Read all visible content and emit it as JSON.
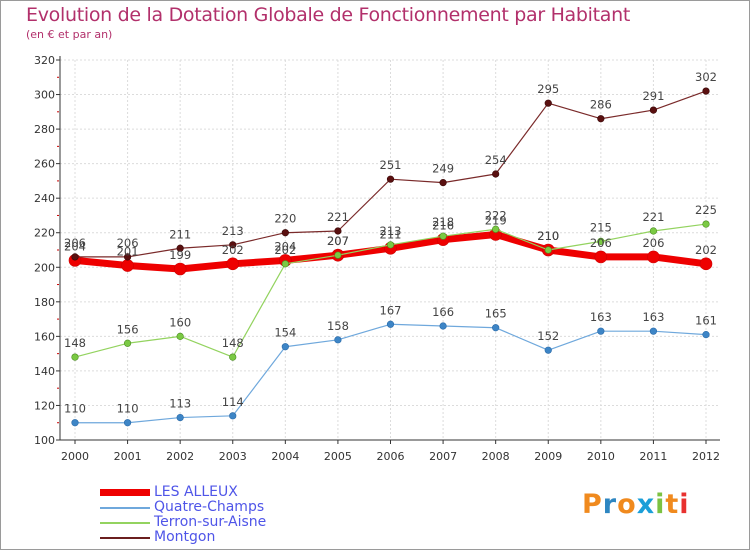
{
  "title": "Evolution de la Dotation Globale de Fonctionnement par Habitant",
  "subtitle": "(en € et par an)",
  "logo": {
    "letters": [
      "P",
      "r",
      "o",
      "x",
      "i",
      "t",
      "i"
    ],
    "colors": [
      "#f08a1e",
      "#2e86c1",
      "#f08a1e",
      "#1b9fd8",
      "#7cc242",
      "#f08a1e",
      "#e8312f"
    ]
  },
  "chart_data": {
    "type": "line",
    "title": "Evolution de la Dotation Globale de Fonctionnement par Habitant",
    "subtitle": "(en € et par an)",
    "xlabel": "",
    "ylabel": "",
    "x": [
      "2000",
      "2001",
      "2002",
      "2003",
      "2004",
      "2005",
      "2006",
      "2007",
      "2008",
      "2009",
      "2010",
      "2011",
      "2012"
    ],
    "ylim": [
      100,
      320
    ],
    "yticks": [
      100,
      120,
      140,
      160,
      180,
      200,
      220,
      240,
      260,
      280,
      300,
      320
    ],
    "grid": true,
    "legend_position": "bottom-left",
    "series": [
      {
        "name": "LES ALLEUX",
        "color": "#ee0000",
        "values": [
          204,
          201,
          199,
          202,
          204,
          207,
          211,
          216,
          219,
          210,
          206,
          206,
          202
        ],
        "labels": [
          "204",
          "201",
          "199",
          "202",
          "204",
          "207",
          "211",
          "216",
          "219",
          "210",
          "206",
          "206",
          "202"
        ]
      },
      {
        "name": "Quatre-Champs",
        "color": "#6fa8dc",
        "values": [
          110,
          110,
          113,
          114,
          154,
          158,
          167,
          166,
          165,
          152,
          163,
          163,
          161
        ],
        "labels": [
          "110",
          "110",
          "113",
          "114",
          "154",
          "158",
          "167",
          "166",
          "165",
          "152",
          "163",
          "163",
          "161"
        ]
      },
      {
        "name": "Terron-sur-Aisne",
        "color": "#93d35f",
        "values": [
          148,
          156,
          160,
          148,
          202,
          207,
          213,
          218,
          222,
          210,
          215,
          221,
          225
        ],
        "labels": [
          "148",
          "156",
          "160",
          "148",
          "202",
          "207",
          "213",
          "218",
          "222",
          "210",
          "215",
          "221",
          "225"
        ]
      },
      {
        "name": "Montgon",
        "color": "#6b1f1f",
        "values": [
          206,
          206,
          211,
          213,
          220,
          221,
          251,
          249,
          254,
          295,
          286,
          291,
          302
        ],
        "labels": [
          "206",
          "206",
          "211",
          "213",
          "220",
          "221",
          "251",
          "249",
          "254",
          "295",
          "286",
          "291",
          "302"
        ]
      }
    ]
  }
}
